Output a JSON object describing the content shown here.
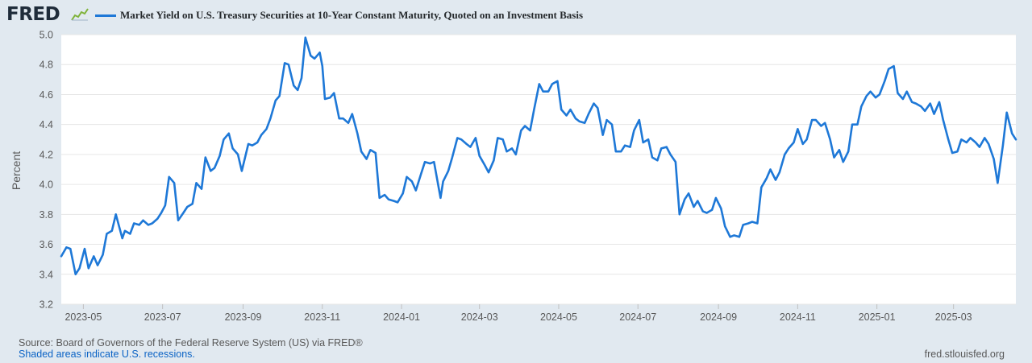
{
  "header": {
    "logo_text": "FRED",
    "logo_icon": "line-chart-icon",
    "series_title": "Market Yield on U.S. Treasury Securities at 10-Year Constant Maturity, Quoted on an Investment Basis"
  },
  "colors": {
    "series": "#1e78d7",
    "background": "#e1e9f0",
    "plot": "#ffffff",
    "grid": "#e6e6e6",
    "text": "#595959",
    "link": "#0b63c5"
  },
  "footer": {
    "source": "Source: Board of Governors of the Federal Reserve System (US) via FRED®",
    "recessions": "Shaded areas indicate U.S. recessions.",
    "url": "fred.stlouisfed.org"
  },
  "chart_data": {
    "type": "line",
    "title": "Market Yield on U.S. Treasury Securities at 10-Year Constant Maturity, Quoted on an Investment Basis",
    "xlabel": "",
    "ylabel": "Percent",
    "ylim": [
      3.2,
      5.0
    ],
    "yticks": [
      3.2,
      3.4,
      3.6,
      3.8,
      4.0,
      4.2,
      4.4,
      4.6,
      4.8,
      5.0
    ],
    "xlim": [
      "2023-04-14",
      "2025-04-18"
    ],
    "xticks": [
      {
        "date": "2023-05-01",
        "label": "2023-05"
      },
      {
        "date": "2023-07-01",
        "label": "2023-07"
      },
      {
        "date": "2023-09-01",
        "label": "2023-09"
      },
      {
        "date": "2023-11-01",
        "label": "2023-11"
      },
      {
        "date": "2024-01-01",
        "label": "2024-01"
      },
      {
        "date": "2024-03-01",
        "label": "2024-03"
      },
      {
        "date": "2024-05-01",
        "label": "2024-05"
      },
      {
        "date": "2024-07-01",
        "label": "2024-07"
      },
      {
        "date": "2024-09-01",
        "label": "2024-09"
      },
      {
        "date": "2024-11-01",
        "label": "2024-11"
      },
      {
        "date": "2025-01-01",
        "label": "2025-01"
      },
      {
        "date": "2025-03-01",
        "label": "2025-03"
      }
    ],
    "grid": true,
    "legend_position": "top",
    "series": [
      {
        "name": "Market Yield on U.S. Treasury Securities at 10-Year Constant Maturity, Quoted on an Investment Basis",
        "points": [
          [
            "2023-04-14",
            3.52
          ],
          [
            "2023-04-18",
            3.58
          ],
          [
            "2023-04-21",
            3.57
          ],
          [
            "2023-04-25",
            3.4
          ],
          [
            "2023-04-28",
            3.44
          ],
          [
            "2023-05-02",
            3.57
          ],
          [
            "2023-05-05",
            3.44
          ],
          [
            "2023-05-09",
            3.52
          ],
          [
            "2023-05-12",
            3.46
          ],
          [
            "2023-05-16",
            3.53
          ],
          [
            "2023-05-19",
            3.67
          ],
          [
            "2023-05-23",
            3.69
          ],
          [
            "2023-05-26",
            3.8
          ],
          [
            "2023-05-31",
            3.64
          ],
          [
            "2023-06-02",
            3.69
          ],
          [
            "2023-06-06",
            3.67
          ],
          [
            "2023-06-09",
            3.74
          ],
          [
            "2023-06-13",
            3.73
          ],
          [
            "2023-06-16",
            3.76
          ],
          [
            "2023-06-20",
            3.73
          ],
          [
            "2023-06-23",
            3.74
          ],
          [
            "2023-06-27",
            3.77
          ],
          [
            "2023-06-30",
            3.81
          ],
          [
            "2023-07-03",
            3.86
          ],
          [
            "2023-07-06",
            4.05
          ],
          [
            "2023-07-10",
            4.01
          ],
          [
            "2023-07-13",
            3.76
          ],
          [
            "2023-07-17",
            3.81
          ],
          [
            "2023-07-20",
            3.85
          ],
          [
            "2023-07-24",
            3.87
          ],
          [
            "2023-07-27",
            4.01
          ],
          [
            "2023-07-31",
            3.97
          ],
          [
            "2023-08-03",
            4.18
          ],
          [
            "2023-08-07",
            4.09
          ],
          [
            "2023-08-10",
            4.11
          ],
          [
            "2023-08-14",
            4.19
          ],
          [
            "2023-08-17",
            4.3
          ],
          [
            "2023-08-21",
            4.34
          ],
          [
            "2023-08-24",
            4.24
          ],
          [
            "2023-08-28",
            4.2
          ],
          [
            "2023-08-31",
            4.09
          ],
          [
            "2023-09-05",
            4.27
          ],
          [
            "2023-09-08",
            4.26
          ],
          [
            "2023-09-12",
            4.28
          ],
          [
            "2023-09-15",
            4.33
          ],
          [
            "2023-09-19",
            4.37
          ],
          [
            "2023-09-22",
            4.44
          ],
          [
            "2023-09-26",
            4.56
          ],
          [
            "2023-09-29",
            4.59
          ],
          [
            "2023-10-03",
            4.81
          ],
          [
            "2023-10-06",
            4.8
          ],
          [
            "2023-10-10",
            4.66
          ],
          [
            "2023-10-13",
            4.63
          ],
          [
            "2023-10-16",
            4.71
          ],
          [
            "2023-10-19",
            4.98
          ],
          [
            "2023-10-23",
            4.86
          ],
          [
            "2023-10-26",
            4.84
          ],
          [
            "2023-10-30",
            4.88
          ],
          [
            "2023-11-01",
            4.79
          ],
          [
            "2023-11-03",
            4.57
          ],
          [
            "2023-11-07",
            4.58
          ],
          [
            "2023-11-10",
            4.61
          ],
          [
            "2023-11-14",
            4.44
          ],
          [
            "2023-11-17",
            4.44
          ],
          [
            "2023-11-21",
            4.41
          ],
          [
            "2023-11-24",
            4.47
          ],
          [
            "2023-11-28",
            4.34
          ],
          [
            "2023-12-01",
            4.22
          ],
          [
            "2023-12-05",
            4.17
          ],
          [
            "2023-12-08",
            4.23
          ],
          [
            "2023-12-12",
            4.21
          ],
          [
            "2023-12-15",
            3.91
          ],
          [
            "2023-12-19",
            3.93
          ],
          [
            "2023-12-22",
            3.9
          ],
          [
            "2023-12-26",
            3.89
          ],
          [
            "2023-12-29",
            3.88
          ],
          [
            "2024-01-02",
            3.94
          ],
          [
            "2024-01-05",
            4.05
          ],
          [
            "2024-01-09",
            4.02
          ],
          [
            "2024-01-12",
            3.96
          ],
          [
            "2024-01-16",
            4.07
          ],
          [
            "2024-01-19",
            4.15
          ],
          [
            "2024-01-23",
            4.14
          ],
          [
            "2024-01-26",
            4.15
          ],
          [
            "2024-01-31",
            3.91
          ],
          [
            "2024-02-02",
            4.02
          ],
          [
            "2024-02-06",
            4.09
          ],
          [
            "2024-02-09",
            4.18
          ],
          [
            "2024-02-13",
            4.31
          ],
          [
            "2024-02-16",
            4.3
          ],
          [
            "2024-02-20",
            4.27
          ],
          [
            "2024-02-23",
            4.25
          ],
          [
            "2024-02-27",
            4.31
          ],
          [
            "2024-03-01",
            4.19
          ],
          [
            "2024-03-05",
            4.13
          ],
          [
            "2024-03-08",
            4.08
          ],
          [
            "2024-03-12",
            4.16
          ],
          [
            "2024-03-15",
            4.31
          ],
          [
            "2024-03-19",
            4.3
          ],
          [
            "2024-03-22",
            4.22
          ],
          [
            "2024-03-26",
            4.24
          ],
          [
            "2024-03-29",
            4.2
          ],
          [
            "2024-04-02",
            4.36
          ],
          [
            "2024-04-05",
            4.39
          ],
          [
            "2024-04-09",
            4.36
          ],
          [
            "2024-04-12",
            4.5
          ],
          [
            "2024-04-16",
            4.67
          ],
          [
            "2024-04-19",
            4.62
          ],
          [
            "2024-04-23",
            4.62
          ],
          [
            "2024-04-26",
            4.67
          ],
          [
            "2024-04-30",
            4.69
          ],
          [
            "2024-05-03",
            4.5
          ],
          [
            "2024-05-07",
            4.46
          ],
          [
            "2024-05-10",
            4.5
          ],
          [
            "2024-05-14",
            4.44
          ],
          [
            "2024-05-17",
            4.42
          ],
          [
            "2024-05-21",
            4.41
          ],
          [
            "2024-05-24",
            4.47
          ],
          [
            "2024-05-28",
            4.54
          ],
          [
            "2024-05-31",
            4.51
          ],
          [
            "2024-06-04",
            4.33
          ],
          [
            "2024-06-07",
            4.43
          ],
          [
            "2024-06-11",
            4.4
          ],
          [
            "2024-06-14",
            4.22
          ],
          [
            "2024-06-18",
            4.22
          ],
          [
            "2024-06-21",
            4.26
          ],
          [
            "2024-06-25",
            4.25
          ],
          [
            "2024-06-28",
            4.36
          ],
          [
            "2024-07-02",
            4.43
          ],
          [
            "2024-07-05",
            4.28
          ],
          [
            "2024-07-09",
            4.3
          ],
          [
            "2024-07-12",
            4.18
          ],
          [
            "2024-07-16",
            4.16
          ],
          [
            "2024-07-19",
            4.24
          ],
          [
            "2024-07-23",
            4.25
          ],
          [
            "2024-07-26",
            4.2
          ],
          [
            "2024-07-30",
            4.15
          ],
          [
            "2024-08-02",
            3.8
          ],
          [
            "2024-08-06",
            3.9
          ],
          [
            "2024-08-09",
            3.94
          ],
          [
            "2024-08-13",
            3.85
          ],
          [
            "2024-08-16",
            3.89
          ],
          [
            "2024-08-20",
            3.82
          ],
          [
            "2024-08-23",
            3.81
          ],
          [
            "2024-08-27",
            3.83
          ],
          [
            "2024-08-30",
            3.91
          ],
          [
            "2024-09-03",
            3.84
          ],
          [
            "2024-09-06",
            3.72
          ],
          [
            "2024-09-10",
            3.65
          ],
          [
            "2024-09-13",
            3.66
          ],
          [
            "2024-09-17",
            3.65
          ],
          [
            "2024-09-20",
            3.73
          ],
          [
            "2024-09-24",
            3.74
          ],
          [
            "2024-09-27",
            3.75
          ],
          [
            "2024-10-01",
            3.74
          ],
          [
            "2024-10-04",
            3.98
          ],
          [
            "2024-10-08",
            4.04
          ],
          [
            "2024-10-11",
            4.1
          ],
          [
            "2024-10-15",
            4.03
          ],
          [
            "2024-10-18",
            4.08
          ],
          [
            "2024-10-22",
            4.2
          ],
          [
            "2024-10-25",
            4.24
          ],
          [
            "2024-10-29",
            4.28
          ],
          [
            "2024-11-01",
            4.37
          ],
          [
            "2024-11-05",
            4.27
          ],
          [
            "2024-11-08",
            4.3
          ],
          [
            "2024-11-12",
            4.43
          ],
          [
            "2024-11-15",
            4.43
          ],
          [
            "2024-11-19",
            4.39
          ],
          [
            "2024-11-22",
            4.41
          ],
          [
            "2024-11-26",
            4.3
          ],
          [
            "2024-11-29",
            4.18
          ],
          [
            "2024-12-03",
            4.23
          ],
          [
            "2024-12-06",
            4.15
          ],
          [
            "2024-12-10",
            4.22
          ],
          [
            "2024-12-13",
            4.4
          ],
          [
            "2024-12-17",
            4.4
          ],
          [
            "2024-12-20",
            4.52
          ],
          [
            "2024-12-24",
            4.59
          ],
          [
            "2024-12-27",
            4.62
          ],
          [
            "2024-12-31",
            4.58
          ],
          [
            "2025-01-03",
            4.6
          ],
          [
            "2025-01-07",
            4.69
          ],
          [
            "2025-01-10",
            4.77
          ],
          [
            "2025-01-14",
            4.79
          ],
          [
            "2025-01-17",
            4.61
          ],
          [
            "2025-01-21",
            4.57
          ],
          [
            "2025-01-24",
            4.62
          ],
          [
            "2025-01-28",
            4.55
          ],
          [
            "2025-01-31",
            4.54
          ],
          [
            "2025-02-04",
            4.52
          ],
          [
            "2025-02-07",
            4.49
          ],
          [
            "2025-02-11",
            4.54
          ],
          [
            "2025-02-14",
            4.47
          ],
          [
            "2025-02-18",
            4.55
          ],
          [
            "2025-02-21",
            4.43
          ],
          [
            "2025-02-25",
            4.3
          ],
          [
            "2025-02-28",
            4.21
          ],
          [
            "2025-03-04",
            4.22
          ],
          [
            "2025-03-07",
            4.3
          ],
          [
            "2025-03-11",
            4.28
          ],
          [
            "2025-03-14",
            4.31
          ],
          [
            "2025-03-18",
            4.28
          ],
          [
            "2025-03-21",
            4.25
          ],
          [
            "2025-03-25",
            4.31
          ],
          [
            "2025-03-28",
            4.27
          ],
          [
            "2025-04-01",
            4.17
          ],
          [
            "2025-04-04",
            4.01
          ],
          [
            "2025-04-08",
            4.26
          ],
          [
            "2025-04-11",
            4.48
          ],
          [
            "2025-04-15",
            4.34
          ],
          [
            "2025-04-18",
            4.3
          ]
        ]
      }
    ]
  }
}
